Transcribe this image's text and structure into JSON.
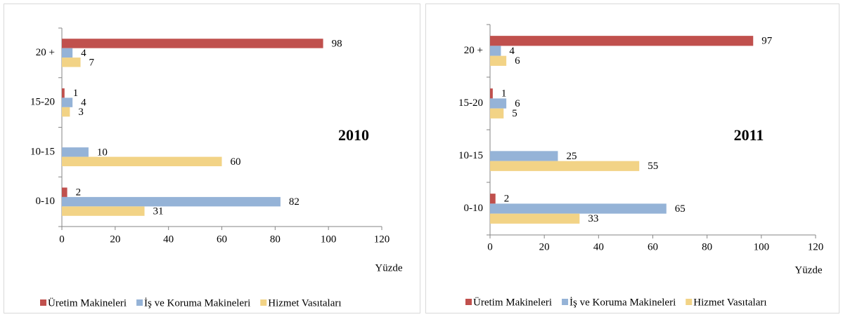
{
  "chart_data": [
    {
      "type": "bar",
      "orientation": "horizontal",
      "annotation": "2010",
      "xlabel": "Yüzde",
      "categories": [
        "0-10",
        "10-15",
        "15-20",
        "20 +"
      ],
      "series": [
        {
          "name": "Üretim Makineleri",
          "color": "#c0504d",
          "values": [
            2,
            null,
            1,
            98
          ]
        },
        {
          "name": "İş ve Koruma Makineleri",
          "color": "#95b3d7",
          "values": [
            82,
            10,
            4,
            4
          ]
        },
        {
          "name": "Hizmet Vasıtaları",
          "color": "#f2d386",
          "values": [
            31,
            60,
            3,
            7
          ]
        }
      ],
      "xlim": [
        0,
        120
      ],
      "xticks": [
        0,
        20,
        40,
        60,
        80,
        100,
        120
      ],
      "legend": "bottom"
    },
    {
      "type": "bar",
      "orientation": "horizontal",
      "annotation": "2011",
      "xlabel": "Yüzde",
      "categories": [
        "0-10",
        "10-15",
        "15-20",
        "20 +"
      ],
      "series": [
        {
          "name": "Üretim Makineleri",
          "color": "#c0504d",
          "values": [
            2,
            null,
            1,
            97
          ]
        },
        {
          "name": "İş ve Koruma Makineleri",
          "color": "#95b3d7",
          "values": [
            65,
            25,
            6,
            4
          ]
        },
        {
          "name": "Hizmet Vasıtaları",
          "color": "#f2d386",
          "values": [
            33,
            55,
            5,
            6
          ]
        }
      ],
      "xlim": [
        0,
        120
      ],
      "xticks": [
        0,
        20,
        40,
        60,
        80,
        100,
        120
      ],
      "legend": "bottom"
    }
  ]
}
